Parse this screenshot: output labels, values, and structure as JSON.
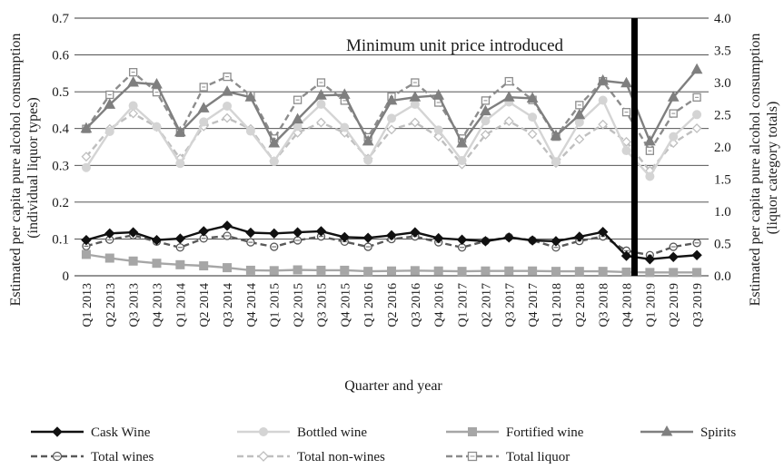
{
  "chart_data": {
    "type": "line",
    "title": "",
    "xlabel": "Quarter and year",
    "ylabel_left": "Estimated per capita pure alcohol consumption (individual liquor types)",
    "ylabel_left_lines": [
      "Estimated per capita pure alcohol consumption",
      "(individual liquor types)"
    ],
    "ylabel_right": "Estimated per capita pure alcohol consumption (liquor category totals)",
    "ylabel_right_lines": [
      "Estimated per capita pure alcohol consumption",
      "(liquor category totals)"
    ],
    "ylim_left": [
      0,
      0.7
    ],
    "ylim_right": [
      0,
      4.0
    ],
    "yticks_left": [
      "0",
      "0.1",
      "0.2",
      "0.3",
      "0.4",
      "0.5",
      "0.6",
      "0.7"
    ],
    "yticks_right": [
      "0.0",
      "0.5",
      "1.0",
      "1.5",
      "2.0",
      "2.5",
      "3.0",
      "3.5",
      "4.0"
    ],
    "grid": "horizontal",
    "legend_position": "bottom",
    "annotation": {
      "text": "Minimum unit price introduced",
      "at_category": "Q4 2018"
    },
    "categories": [
      "Q1 2013",
      "Q2 2013",
      "Q3 2013",
      "Q4 2013",
      "Q1 2014",
      "Q2 2014",
      "Q3 2014",
      "Q4 2014",
      "Q1 2015",
      "Q2 2015",
      "Q3 2015",
      "Q4 2015",
      "Q1 2016",
      "Q2 2016",
      "Q3 2016",
      "Q4 2016",
      "Q1 2017",
      "Q2 2017",
      "Q3 2017",
      "Q4 2017",
      "Q1 2018",
      "Q2 2018",
      "Q3 2018",
      "Q4 2018",
      "Q1 2019",
      "Q2 2019",
      "Q3 2019"
    ],
    "series": [
      {
        "name": "Cask Wine",
        "axis": "left",
        "color": "#111111",
        "dash": "solid",
        "marker": "diamond-filled",
        "values": [
          0.097,
          0.115,
          0.118,
          0.097,
          0.101,
          0.121,
          0.136,
          0.117,
          0.115,
          0.118,
          0.121,
          0.105,
          0.103,
          0.11,
          0.118,
          0.102,
          0.098,
          0.094,
          0.104,
          0.096,
          0.094,
          0.106,
          0.119,
          0.054,
          0.045,
          0.051,
          0.056
        ]
      },
      {
        "name": "Bottled wine",
        "axis": "left",
        "color": "#d4d4d4",
        "dash": "solid",
        "marker": "circle-filled",
        "values": [
          0.294,
          0.392,
          0.462,
          0.405,
          0.305,
          0.418,
          0.461,
          0.393,
          0.311,
          0.406,
          0.466,
          0.403,
          0.314,
          0.428,
          0.466,
          0.396,
          0.313,
          0.421,
          0.472,
          0.431,
          0.31,
          0.417,
          0.477,
          0.34,
          0.27,
          0.378,
          0.438
        ]
      },
      {
        "name": "Fortified wine",
        "axis": "left",
        "color": "#a6a6a6",
        "dash": "solid",
        "marker": "square-filled",
        "values": [
          0.058,
          0.048,
          0.04,
          0.034,
          0.03,
          0.027,
          0.022,
          0.015,
          0.014,
          0.016,
          0.015,
          0.015,
          0.012,
          0.013,
          0.014,
          0.013,
          0.012,
          0.013,
          0.013,
          0.013,
          0.012,
          0.012,
          0.012,
          0.01,
          0.009,
          0.009,
          0.009
        ]
      },
      {
        "name": "Spirits",
        "axis": "left",
        "color": "#7f7f7f",
        "dash": "solid",
        "marker": "triangle-filled",
        "values": [
          0.4,
          0.465,
          0.525,
          0.52,
          0.39,
          0.455,
          0.5,
          0.485,
          0.36,
          0.425,
          0.49,
          0.492,
          0.365,
          0.476,
          0.485,
          0.49,
          0.36,
          0.447,
          0.485,
          0.482,
          0.38,
          0.437,
          0.53,
          0.523,
          0.365,
          0.485,
          0.56
        ]
      },
      {
        "name": "Total wines",
        "axis": "right",
        "color": "#595959",
        "dash": "dashed",
        "marker": "circle-open",
        "values": [
          0.46,
          0.56,
          0.63,
          0.53,
          0.44,
          0.58,
          0.62,
          0.52,
          0.45,
          0.55,
          0.61,
          0.53,
          0.45,
          0.57,
          0.61,
          0.52,
          0.44,
          0.54,
          0.6,
          0.55,
          0.44,
          0.54,
          0.61,
          0.39,
          0.32,
          0.45,
          0.51
        ]
      },
      {
        "name": "Total non-wines",
        "axis": "right",
        "color": "#bfbfbf",
        "dash": "dashed",
        "marker": "diamond-open",
        "values": [
          1.85,
          2.28,
          2.52,
          2.31,
          1.82,
          2.32,
          2.45,
          2.28,
          1.78,
          2.22,
          2.38,
          2.22,
          1.82,
          2.27,
          2.38,
          2.16,
          1.73,
          2.19,
          2.4,
          2.2,
          1.75,
          2.12,
          2.35,
          2.08,
          1.63,
          2.06,
          2.29
        ]
      },
      {
        "name": "Total liquor",
        "axis": "right",
        "color": "#8c8c8c",
        "dash": "dashed",
        "marker": "square-open",
        "values": [
          2.28,
          2.81,
          3.16,
          2.85,
          2.22,
          2.93,
          3.09,
          2.8,
          2.13,
          2.73,
          3.0,
          2.72,
          2.15,
          2.78,
          3.0,
          2.69,
          2.13,
          2.72,
          3.02,
          2.73,
          2.16,
          2.65,
          3.02,
          2.54,
          1.94,
          2.52,
          2.77
        ]
      }
    ]
  }
}
